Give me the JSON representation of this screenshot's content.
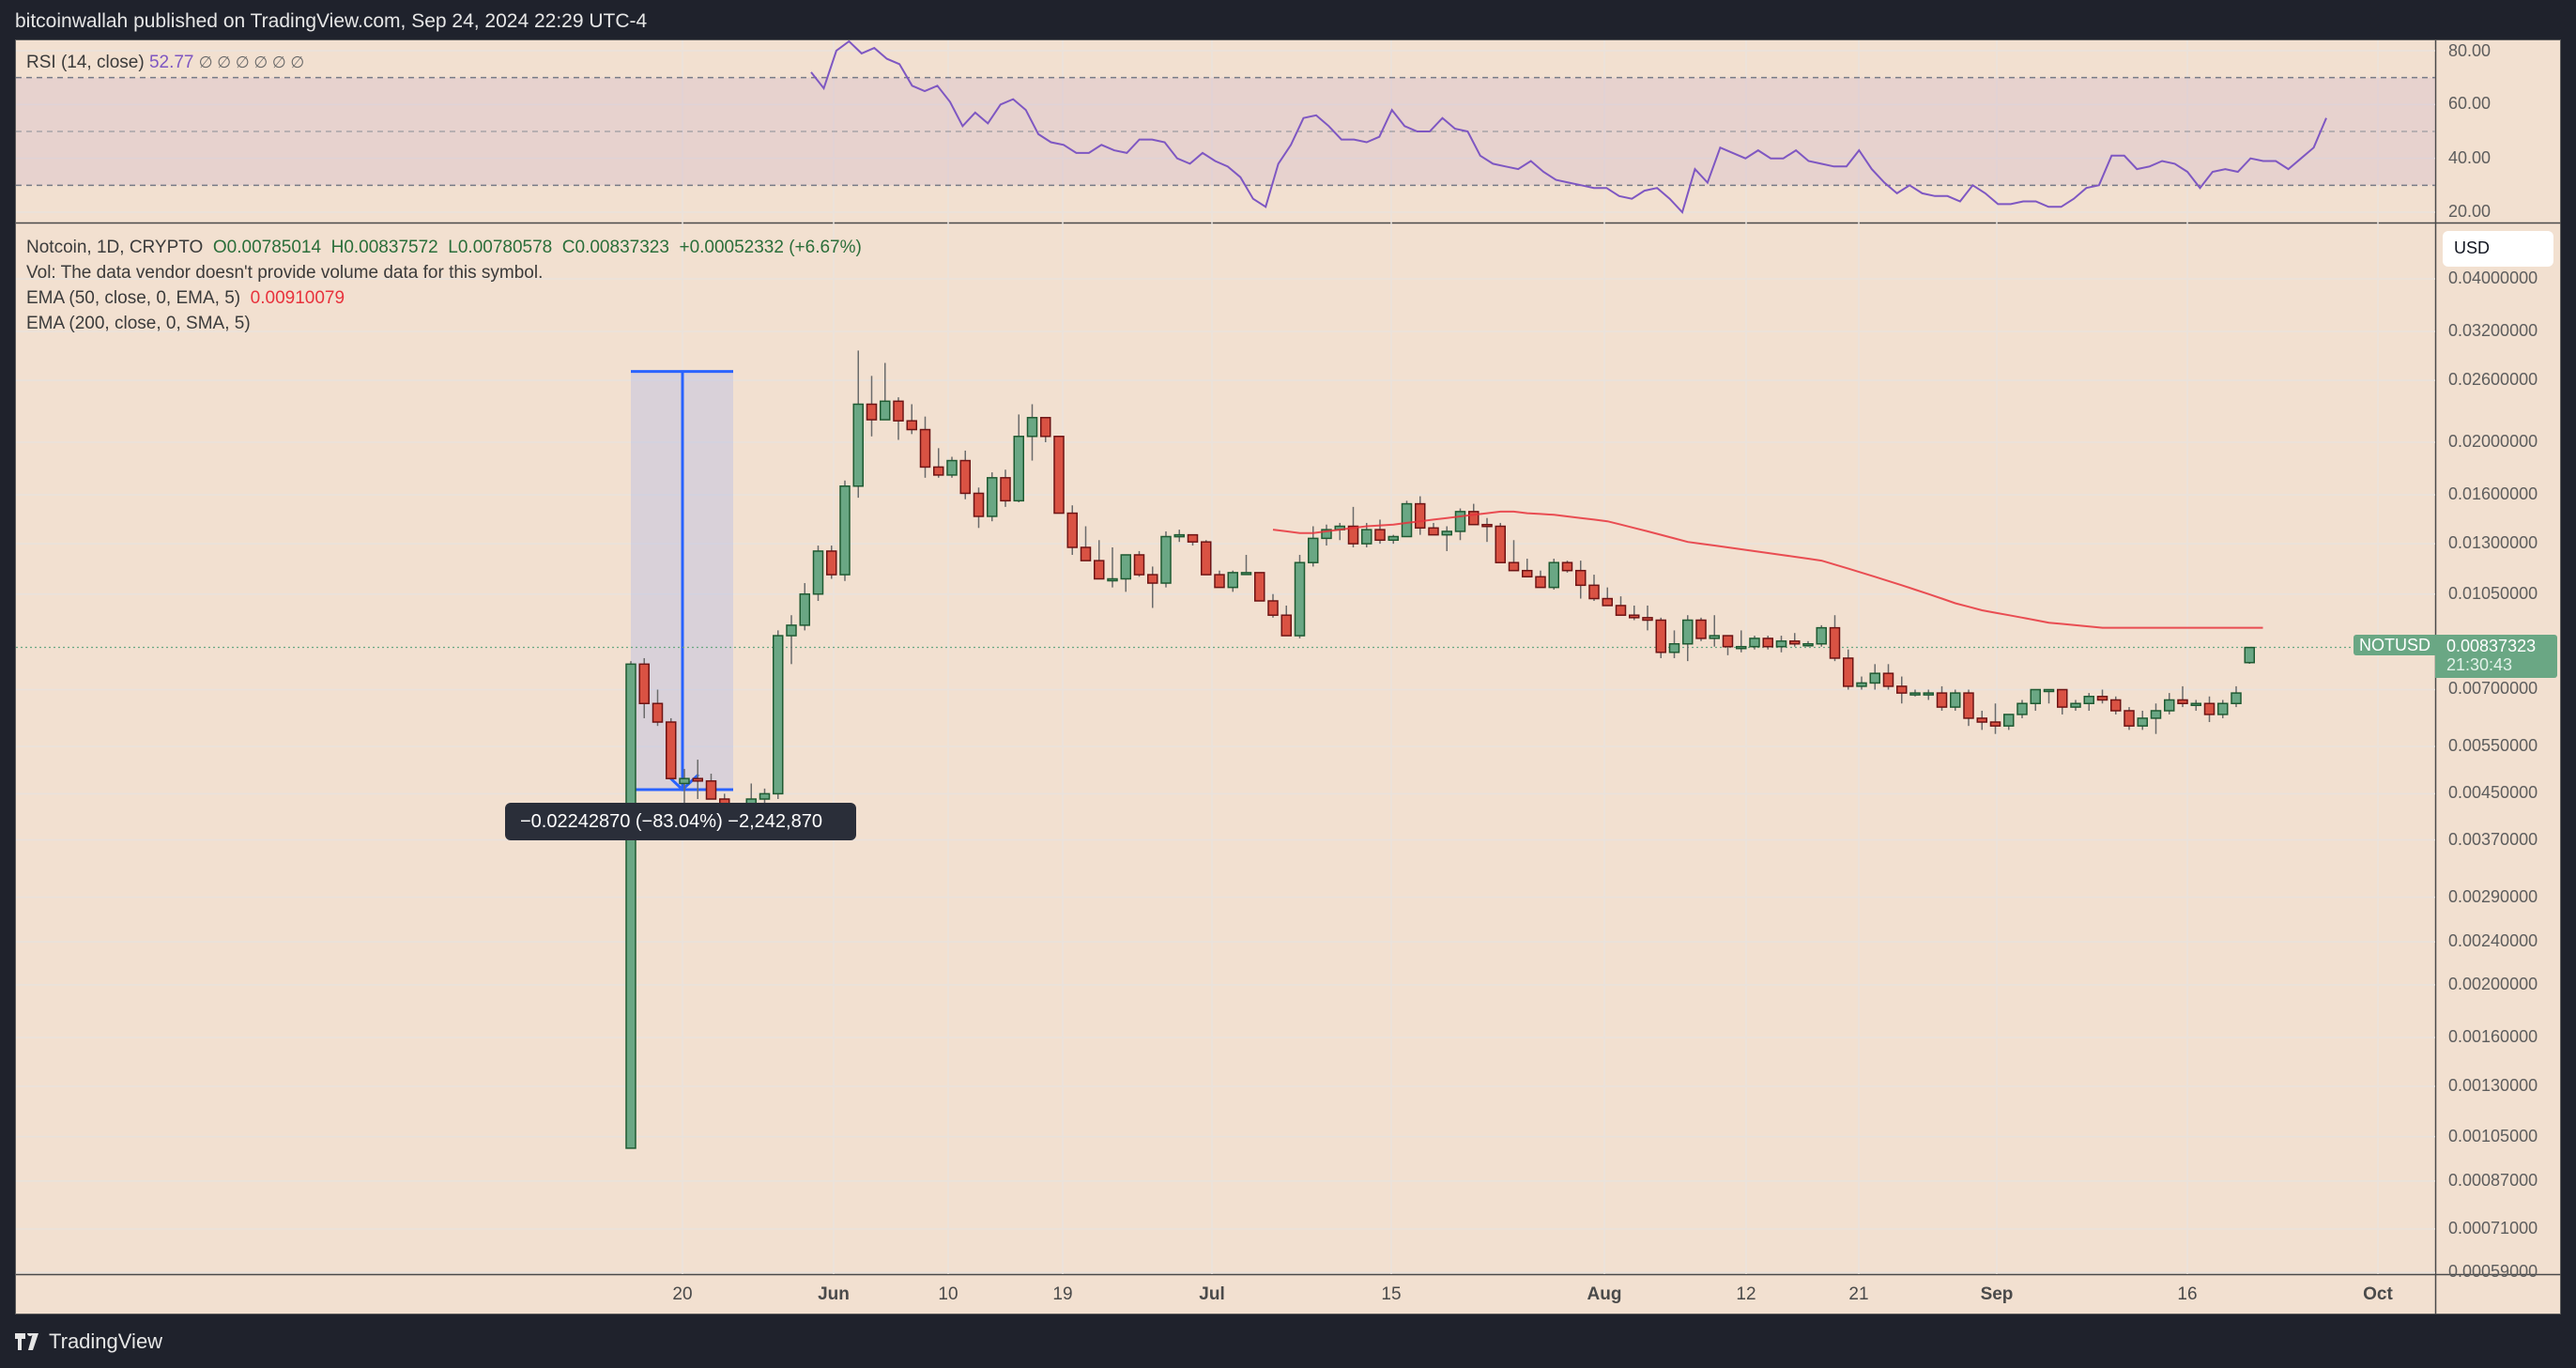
{
  "header": {
    "publish_text": "bitcoinwallah published on TradingView.com, Sep 24, 2024 22:29 UTC-4"
  },
  "rsi_pane": {
    "label": "RSI (14, close)",
    "value": "52.77",
    "na_markers": "∅ ∅ ∅ ∅ ∅ ∅",
    "axis_ticks": [
      "80.00",
      "60.00",
      "40.00",
      "20.00"
    ]
  },
  "main_pane": {
    "symbol_line": "Notcoin, 1D, CRYPTO",
    "open": "O0.00785014",
    "high": "H0.00837572",
    "low": "L0.00780578",
    "close": "C0.00837323",
    "change": "+0.00052332 (+6.67%)",
    "vol_note": "Vol: The data vendor doesn't provide volume data for this symbol.",
    "ema50_label": "EMA (50, close, 0, EMA, 5)",
    "ema50_value": "0.00910079",
    "ema200_label": "EMA (200, close, 0, SMA, 5)",
    "currency_button": "USD",
    "price_axis_ticks": [
      "0.04000000",
      "0.03200000",
      "0.02600000",
      "0.02000000",
      "0.01600000",
      "0.01300000",
      "0.01050000",
      "0.00700000",
      "0.00550000",
      "0.00450000",
      "0.00370000",
      "0.00290000",
      "0.00240000",
      "0.00200000",
      "0.00160000",
      "0.00130000",
      "0.00105000",
      "0.00087000",
      "0.00071000",
      "0.00059000"
    ],
    "last_price_tag": {
      "symbol": "NOTUSD",
      "price": "0.00837323",
      "countdown": "21:30:43"
    },
    "measure_tooltip": "−0.02242870 (−83.04%) −2,242,870"
  },
  "time_axis": {
    "labels": [
      {
        "text": "20",
        "bold": false
      },
      {
        "text": "Jun",
        "bold": true
      },
      {
        "text": "10",
        "bold": false
      },
      {
        "text": "19",
        "bold": false
      },
      {
        "text": "Jul",
        "bold": true
      },
      {
        "text": "15",
        "bold": false
      },
      {
        "text": "Aug",
        "bold": true
      },
      {
        "text": "12",
        "bold": false
      },
      {
        "text": "21",
        "bold": false
      },
      {
        "text": "Sep",
        "bold": true
      },
      {
        "text": "16",
        "bold": false
      },
      {
        "text": "Oct",
        "bold": true
      }
    ]
  },
  "footer": {
    "brand": "TradingView"
  },
  "colors": {
    "background": "#f2e0d0",
    "up": "#6aa784",
    "down": "#d95243",
    "up_border": "#1f5a32",
    "down_border": "#6e1414",
    "ema50": "#e8323c",
    "rsi_line": "#7e57c2",
    "measure": "#2962ff"
  },
  "chart_data": {
    "type": "candlestick",
    "title": "Notcoin, 1D, CRYPTO",
    "scale": "log",
    "ylim": [
      0.00059,
      0.04
    ],
    "x_ticks": [
      "20",
      "Jun",
      "10",
      "19",
      "Jul",
      "15",
      "Aug",
      "12",
      "21",
      "Sep",
      "16",
      "Oct"
    ],
    "candles_ohlc": [
      [
        0.001,
        0.0079,
        0.001,
        0.0078
      ],
      [
        0.0078,
        0.008,
        0.0062,
        0.0066
      ],
      [
        0.0066,
        0.007,
        0.006,
        0.0061
      ],
      [
        0.0061,
        0.0062,
        0.0048,
        0.0048
      ],
      [
        0.0047,
        0.005,
        0.0042,
        0.0048
      ],
      [
        0.0048,
        0.0052,
        0.0044,
        0.00475
      ],
      [
        0.00475,
        0.0049,
        0.0044,
        0.0044
      ],
      [
        0.0044,
        0.0045,
        0.0038,
        0.0039
      ],
      [
        0.0039,
        0.004,
        0.0038,
        0.00385
      ],
      [
        0.00385,
        0.0047,
        0.0037,
        0.0044
      ],
      [
        0.0044,
        0.0046,
        0.0042,
        0.0045
      ],
      [
        0.0045,
        0.009,
        0.0044,
        0.0088
      ],
      [
        0.0088,
        0.0096,
        0.0078,
        0.0092
      ],
      [
        0.0092,
        0.011,
        0.009,
        0.0105
      ],
      [
        0.0105,
        0.0129,
        0.0102,
        0.0126
      ],
      [
        0.0126,
        0.0129,
        0.0112,
        0.0114
      ],
      [
        0.0114,
        0.017,
        0.0111,
        0.0166
      ],
      [
        0.0166,
        0.0295,
        0.0158,
        0.0235
      ],
      [
        0.0235,
        0.0265,
        0.0205,
        0.022
      ],
      [
        0.022,
        0.028,
        0.022,
        0.0238
      ],
      [
        0.0238,
        0.0242,
        0.0202,
        0.0219
      ],
      [
        0.0219,
        0.0235,
        0.0207,
        0.0211
      ],
      [
        0.0211,
        0.0223,
        0.0172,
        0.018
      ],
      [
        0.018,
        0.0195,
        0.0172,
        0.0174
      ],
      [
        0.0174,
        0.0188,
        0.0172,
        0.0185
      ],
      [
        0.0185,
        0.0193,
        0.0157,
        0.0161
      ],
      [
        0.0161,
        0.0165,
        0.0139,
        0.0146
      ],
      [
        0.0146,
        0.0176,
        0.0143,
        0.0172
      ],
      [
        0.0172,
        0.0178,
        0.0152,
        0.0156
      ],
      [
        0.0156,
        0.0225,
        0.0155,
        0.0205
      ],
      [
        0.0205,
        0.0235,
        0.0185,
        0.0222
      ],
      [
        0.0222,
        0.022,
        0.02,
        0.0205
      ],
      [
        0.0205,
        0.02,
        0.0149,
        0.0148
      ],
      [
        0.0148,
        0.0153,
        0.0124,
        0.0128
      ],
      [
        0.0128,
        0.014,
        0.0122,
        0.0121
      ],
      [
        0.0121,
        0.0132,
        0.0112,
        0.0112
      ],
      [
        0.0112,
        0.0128,
        0.0108,
        0.0112
      ],
      [
        0.0112,
        0.0124,
        0.0106,
        0.0124
      ],
      [
        0.0124,
        0.0126,
        0.0113,
        0.0114
      ],
      [
        0.0114,
        0.0118,
        0.0099,
        0.011
      ],
      [
        0.011,
        0.0137,
        0.0108,
        0.0134
      ],
      [
        0.0134,
        0.0138,
        0.0131,
        0.0135
      ],
      [
        0.0135,
        0.0133,
        0.0129,
        0.0131
      ],
      [
        0.0131,
        0.0132,
        0.0114,
        0.0114
      ],
      [
        0.0114,
        0.0116,
        0.0108,
        0.0108
      ],
      [
        0.0108,
        0.0116,
        0.0106,
        0.0115
      ],
      [
        0.0115,
        0.0124,
        0.0114,
        0.0115
      ],
      [
        0.0115,
        0.0115,
        0.0104,
        0.0102
      ],
      [
        0.0102,
        0.0105,
        0.0095,
        0.0096
      ],
      [
        0.0096,
        0.01,
        0.0088,
        0.0088
      ],
      [
        0.0088,
        0.0124,
        0.0087,
        0.012
      ],
      [
        0.012,
        0.014,
        0.0118,
        0.0133
      ],
      [
        0.0133,
        0.0141,
        0.0129,
        0.0138
      ],
      [
        0.0138,
        0.0142,
        0.0132,
        0.014
      ],
      [
        0.014,
        0.0152,
        0.0128,
        0.013
      ],
      [
        0.013,
        0.0142,
        0.0128,
        0.0138
      ],
      [
        0.0138,
        0.0144,
        0.013,
        0.0132
      ],
      [
        0.0132,
        0.0135,
        0.013,
        0.0134
      ],
      [
        0.0134,
        0.0156,
        0.0134,
        0.0154
      ],
      [
        0.0154,
        0.0159,
        0.0135,
        0.0139
      ],
      [
        0.0139,
        0.0142,
        0.0135,
        0.0135
      ],
      [
        0.0135,
        0.014,
        0.0126,
        0.0137
      ],
      [
        0.0137,
        0.0151,
        0.0132,
        0.0149
      ],
      [
        0.0149,
        0.0154,
        0.0148,
        0.0141
      ],
      [
        0.0141,
        0.0145,
        0.0131,
        0.014
      ],
      [
        0.014,
        0.0142,
        0.012,
        0.012
      ],
      [
        0.012,
        0.0132,
        0.0118,
        0.0116
      ],
      [
        0.0116,
        0.0122,
        0.0113,
        0.0113
      ],
      [
        0.0113,
        0.0116,
        0.0108,
        0.0108
      ],
      [
        0.0108,
        0.0122,
        0.0107,
        0.012
      ],
      [
        0.012,
        0.0121,
        0.0115,
        0.0116
      ],
      [
        0.0116,
        0.0121,
        0.0103,
        0.0109
      ],
      [
        0.0109,
        0.0114,
        0.0102,
        0.0103
      ],
      [
        0.0103,
        0.0108,
        0.01,
        0.01
      ],
      [
        0.01,
        0.0104,
        0.0096,
        0.0096
      ],
      [
        0.0096,
        0.01,
        0.0094,
        0.0095
      ],
      [
        0.0095,
        0.01,
        0.009,
        0.0094
      ],
      [
        0.0094,
        0.0095,
        0.008,
        0.0082
      ],
      [
        0.0082,
        0.009,
        0.008,
        0.0085
      ],
      [
        0.0085,
        0.0096,
        0.0079,
        0.0094
      ],
      [
        0.0094,
        0.0095,
        0.0086,
        0.0087
      ],
      [
        0.0087,
        0.0096,
        0.0084,
        0.0088
      ],
      [
        0.0088,
        0.0088,
        0.0081,
        0.0084
      ],
      [
        0.0084,
        0.009,
        0.0082,
        0.0084
      ],
      [
        0.0084,
        0.0088,
        0.0083,
        0.0087
      ],
      [
        0.0087,
        0.0088,
        0.0083,
        0.0084
      ],
      [
        0.0084,
        0.0088,
        0.0082,
        0.0086
      ],
      [
        0.0086,
        0.0089,
        0.0084,
        0.0085
      ],
      [
        0.0085,
        0.0086,
        0.0084,
        0.0085
      ],
      [
        0.0085,
        0.0092,
        0.0084,
        0.0091
      ],
      [
        0.0091,
        0.0096,
        0.0079,
        0.008
      ],
      [
        0.008,
        0.0083,
        0.007,
        0.0071
      ],
      [
        0.0071,
        0.0074,
        0.007,
        0.0072
      ],
      [
        0.0072,
        0.0078,
        0.007,
        0.0075
      ],
      [
        0.0075,
        0.0078,
        0.007,
        0.0071
      ],
      [
        0.0071,
        0.0074,
        0.0066,
        0.0069
      ],
      [
        0.0069,
        0.007,
        0.0068,
        0.0069
      ],
      [
        0.0069,
        0.007,
        0.0067,
        0.0069
      ],
      [
        0.0069,
        0.0071,
        0.0064,
        0.0065
      ],
      [
        0.0065,
        0.007,
        0.0064,
        0.0069
      ],
      [
        0.0069,
        0.007,
        0.006,
        0.0062
      ],
      [
        0.0062,
        0.0064,
        0.0059,
        0.0061
      ],
      [
        0.0061,
        0.0066,
        0.0058,
        0.006
      ],
      [
        0.006,
        0.0063,
        0.0059,
        0.0063
      ],
      [
        0.0063,
        0.0067,
        0.0062,
        0.0066
      ],
      [
        0.0066,
        0.007,
        0.0064,
        0.007
      ],
      [
        0.007,
        0.007,
        0.0066,
        0.007
      ],
      [
        0.007,
        0.007,
        0.0063,
        0.0065
      ],
      [
        0.0065,
        0.0067,
        0.0064,
        0.0066
      ],
      [
        0.0066,
        0.0069,
        0.0064,
        0.0068
      ],
      [
        0.0068,
        0.007,
        0.0066,
        0.0067
      ],
      [
        0.0067,
        0.0068,
        0.0063,
        0.0064
      ],
      [
        0.0064,
        0.0065,
        0.0059,
        0.006
      ],
      [
        0.006,
        0.0064,
        0.0059,
        0.0062
      ],
      [
        0.0062,
        0.0066,
        0.0058,
        0.0064
      ],
      [
        0.0064,
        0.0069,
        0.0063,
        0.0067
      ],
      [
        0.0067,
        0.0071,
        0.0065,
        0.0066
      ],
      [
        0.0066,
        0.0067,
        0.0064,
        0.0066
      ],
      [
        0.0066,
        0.0068,
        0.0061,
        0.0063
      ],
      [
        0.0063,
        0.0067,
        0.0062,
        0.0066
      ],
      [
        0.0066,
        0.0071,
        0.0065,
        0.0069
      ],
      [
        0.00785,
        0.00838,
        0.00781,
        0.00837
      ]
    ],
    "ema50": {
      "start_index": 48,
      "values": [
        0.0138,
        0.0137,
        0.0136,
        0.0136,
        0.0137,
        0.0138,
        0.0139,
        0.014,
        0.01405,
        0.0141,
        0.0142,
        0.0143,
        0.0144,
        0.0145,
        0.0146,
        0.0147,
        0.0148,
        0.0149,
        0.0149,
        0.0148,
        0.01475,
        0.0147,
        0.0146,
        0.0145,
        0.0144,
        0.0143,
        0.0141,
        0.0139,
        0.0137,
        0.0135,
        0.0133,
        0.0131,
        0.013,
        0.0129,
        0.0128,
        0.0127,
        0.0126,
        0.0125,
        0.0124,
        0.0123,
        0.0122,
        0.0121,
        0.0119,
        0.0117,
        0.0115,
        0.0113,
        0.0111,
        0.0109,
        0.0107,
        0.0105,
        0.0103,
        0.0101,
        0.00995,
        0.0098,
        0.0097,
        0.0096,
        0.0095,
        0.0094,
        0.0093,
        0.00925,
        0.0092,
        0.00915,
        0.0091,
        0.0091,
        0.0091,
        0.0091,
        0.0091,
        0.0091,
        0.0091,
        0.0091,
        0.0091,
        0.0091,
        0.0091,
        0.0091,
        0.0091
      ]
    },
    "measure": {
      "from_price": 0.027,
      "to_price": 0.00458,
      "change": -0.0224287,
      "change_pct": -83.04,
      "ticks": -2242870,
      "start_index": 0,
      "end_index": 4
    },
    "rsi": {
      "ylim": [
        10,
        85
      ],
      "bands": [
        30,
        50,
        70
      ],
      "values": [
        72,
        66,
        80,
        84,
        79,
        81,
        77,
        75,
        67,
        65,
        67,
        61,
        52,
        57,
        53,
        60,
        62,
        58,
        49,
        46,
        45,
        42,
        42,
        45,
        43,
        42,
        47,
        47,
        46,
        40,
        38,
        42,
        39,
        37,
        33,
        25,
        22,
        38,
        45,
        55,
        56,
        52,
        47,
        47,
        46,
        48,
        58,
        52,
        50,
        50,
        55,
        51,
        50,
        41,
        38,
        37,
        36,
        39,
        35,
        32,
        31,
        30,
        29,
        29,
        26,
        25,
        28,
        29,
        25,
        20,
        36,
        31,
        44,
        42,
        40,
        43,
        40,
        40,
        43,
        39,
        38,
        37,
        37,
        43,
        36,
        31,
        27,
        30,
        27,
        26,
        26,
        24,
        30,
        27,
        23,
        23,
        24,
        24,
        22,
        22,
        25,
        29,
        30,
        41,
        41,
        36,
        37,
        39,
        38,
        35,
        29,
        35,
        36,
        35,
        40,
        39,
        39,
        36,
        40,
        44,
        55
      ]
    }
  }
}
